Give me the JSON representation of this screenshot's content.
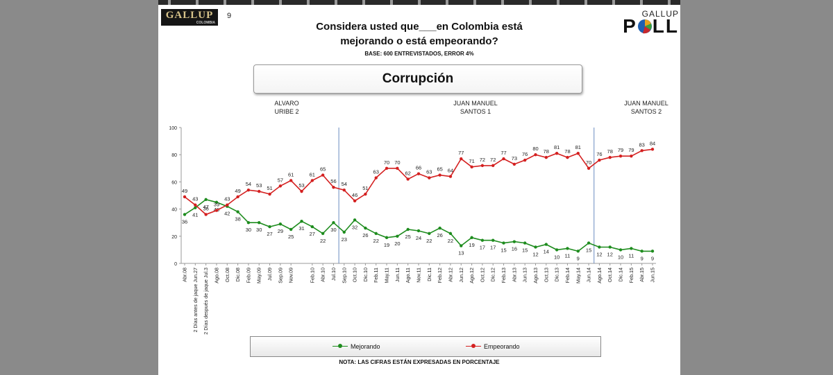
{
  "page_number": "9",
  "logo": {
    "left_main": "GALLUP",
    "left_sub": "COLOMBIA",
    "right_top": "GALLUP"
  },
  "header": {
    "title_line1": "Considera usted que___en Colombia está",
    "title_line2": "mejorando o está empeorando?",
    "base": "BASE: 600 ENTREVISTADOS, ERROR 4%",
    "topic": "Corrupción"
  },
  "periods": [
    {
      "line1": "ALVARO",
      "line2": "URIBE 2"
    },
    {
      "line1": "JUAN MANUEL",
      "line2": "SANTOS 1"
    },
    {
      "line1": "JUAN MANUEL",
      "line2": "SANTOS 2"
    }
  ],
  "footer": {
    "note": "NOTA: LAS CIFRAS ESTÁN EXPRESADAS EN PORCENTAJE"
  },
  "chart_data": {
    "type": "line",
    "title": "Corrupción",
    "xlabel": "",
    "ylabel": "",
    "ylim": [
      0,
      100
    ],
    "yticks": [
      0,
      20,
      40,
      60,
      80,
      100
    ],
    "grid": false,
    "legend_position": "bottom",
    "period_dividers_after": [
      "Jul.10",
      "Jun.14"
    ],
    "x": [
      "Abr.08",
      "2 Días antes de jaque Jun.27",
      "2 Días después de jaque Jul.3",
      "Ago.08",
      "Oct.08",
      "Dic.08",
      "Feb.09",
      "May.09",
      "Jul.09",
      "Sep.09",
      "Nov.09",
      "Dic.09",
      "Feb.10",
      "Abr.10",
      "Jul.10",
      "Sep.10",
      "Oct.10",
      "Dic.10",
      "Feb.11",
      "May.11",
      "Jun.11",
      "Ago.11",
      "Nov.11",
      "Dic.11",
      "Feb.12",
      "Abr.12",
      "Jun.12",
      "Ago.12",
      "Oct.12",
      "Dic.12",
      "Feb.13",
      "Abr.13",
      "Jun.13",
      "Ago.13",
      "Oct.13",
      "Dic.13",
      "Feb.14",
      "May.14",
      "Jun.14",
      "Ago.14",
      "Oct.14",
      "Dic.14",
      "Feb.15",
      "Abr.15",
      "Jun.15"
    ],
    "x_tick_labels": [
      "Abr.08",
      "2 Días antes de jaque Jun.27",
      "2 Días después de jaque Jul.3",
      "Ago.08",
      "Oct.08",
      "Dic.08",
      "Feb.09",
      "May.09",
      "Jul.09",
      "Sep.09",
      "Nov.09",
      "Feb.10",
      "Abr.10",
      "Jul.10",
      "Sep.10",
      "Oct.10",
      "Dic.10",
      "Feb.11",
      "May.11",
      "Jun.11",
      "Ago.11",
      "Nov.11",
      "Dic.11",
      "Feb.12",
      "Abr.12",
      "Jun.12",
      "Ago.12",
      "Oct.12",
      "Dic.12",
      "Feb.13",
      "Abr.13",
      "Jun.13",
      "Ago.13",
      "Oct.13",
      "Dic.13",
      "Feb.14",
      "May.14",
      "Jun.14",
      "Ago.14",
      "Oct.14",
      "Dic.14",
      "Feb.15",
      "Abr.15",
      "Jun.15"
    ],
    "series": [
      {
        "name": "Mejorando",
        "color": "#1e8c1e",
        "values": [
          36,
          41,
          47,
          45,
          42,
          38,
          30,
          30,
          27,
          29,
          25,
          31,
          27,
          22,
          30,
          23,
          32,
          26,
          22,
          19,
          20,
          25,
          24,
          22,
          26,
          22,
          13,
          19,
          17,
          17,
          15,
          16,
          15,
          12,
          14,
          10,
          11,
          9,
          15,
          12,
          12,
          10,
          11,
          9,
          9
        ]
      },
      {
        "name": "Empeorando",
        "color": "#d42020",
        "values": [
          49,
          43,
          36,
          39,
          43,
          49,
          54,
          53,
          51,
          57,
          61,
          53,
          61,
          65,
          56,
          54,
          46,
          51,
          63,
          70,
          70,
          62,
          66,
          63,
          65,
          64,
          77,
          71,
          72,
          72,
          77,
          73,
          76,
          80,
          78,
          81,
          78,
          81,
          70,
          76,
          78,
          79,
          79,
          83,
          84
        ]
      }
    ]
  }
}
